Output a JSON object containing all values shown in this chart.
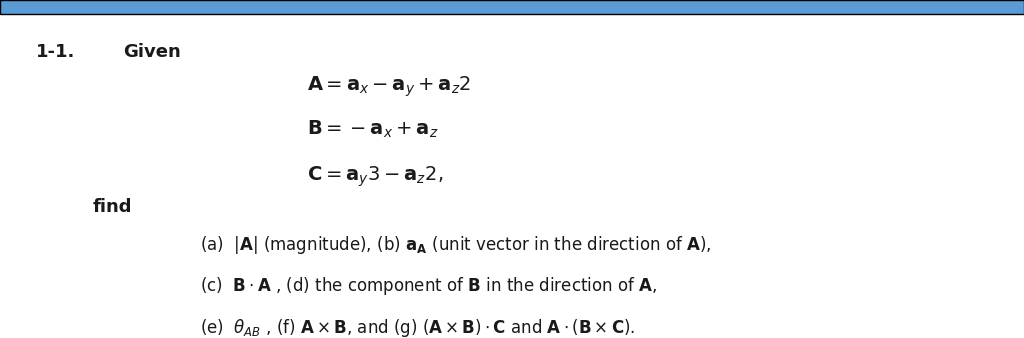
{
  "background_color": "#ffffff",
  "top_bar_color": "#5b9bd5",
  "top_bar_height": 0.045,
  "problem_number": "1-1.",
  "given_word": "Given",
  "find_word": "find",
  "eq_A": [
    "A",
    "=",
    "a",
    "ₓ",
    "−",
    "a",
    "ᵧ",
    "+",
    "a",
    "ᵩ",
    "2"
  ],
  "eq_B": [
    "B",
    "=",
    "−",
    "a",
    "ₓ",
    "+",
    "a",
    "ᵩ"
  ],
  "eq_C": [
    "C",
    "=",
    "a",
    "ᵧ",
    "3",
    "−",
    "a",
    "ᵩ",
    "2,"
  ],
  "find_lines": [
    "(a)  |A| (magnitude), (b) a_A (unit vector in the direction of A),",
    "(c)  B · A , (d) the component of B in the direction of A,",
    "(e)  θ_AB , (f) A × B, and (g) (A × B) · C and A · (B × C)."
  ],
  "number_fontsize": 13,
  "given_fontsize": 13,
  "eq_fontsize": 13,
  "find_fontsize": 12,
  "text_color": "#1a1a1a"
}
